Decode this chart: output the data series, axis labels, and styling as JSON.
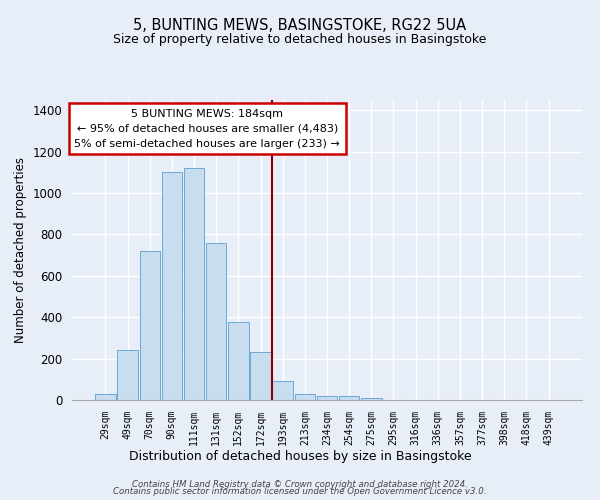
{
  "title": "5, BUNTING MEWS, BASINGSTOKE, RG22 5UA",
  "subtitle": "Size of property relative to detached houses in Basingstoke",
  "xlabel": "Distribution of detached houses by size in Basingstoke",
  "ylabel": "Number of detached properties",
  "bar_labels": [
    "29sqm",
    "49sqm",
    "70sqm",
    "90sqm",
    "111sqm",
    "131sqm",
    "152sqm",
    "172sqm",
    "193sqm",
    "213sqm",
    "234sqm",
    "254sqm",
    "275sqm",
    "295sqm",
    "316sqm",
    "336sqm",
    "357sqm",
    "377sqm",
    "398sqm",
    "418sqm",
    "439sqm"
  ],
  "bar_values": [
    30,
    240,
    720,
    1100,
    1120,
    760,
    375,
    230,
    90,
    30,
    20,
    20,
    10,
    0,
    0,
    0,
    0,
    0,
    0,
    0,
    0
  ],
  "bar_color": "#c8ddf0",
  "bar_edge_color": "#6aaad4",
  "vline_color": "#8b0000",
  "ylim": [
    0,
    1450
  ],
  "yticks": [
    0,
    200,
    400,
    600,
    800,
    1000,
    1200,
    1400
  ],
  "annotation_title": "5 BUNTING MEWS: 184sqm",
  "annotation_line1": "← 95% of detached houses are smaller (4,483)",
  "annotation_line2": "5% of semi-detached houses are larger (233) →",
  "annotation_box_color": "#ffffff",
  "annotation_box_edge": "#cc0000",
  "footer_line1": "Contains HM Land Registry data © Crown copyright and database right 2024.",
  "footer_line2": "Contains public sector information licensed under the Open Government Licence v3.0.",
  "bg_color": "#e8eef8",
  "plot_bg_color": "#e8eef8",
  "grid_color": "#ffffff",
  "vline_index": 7.5
}
